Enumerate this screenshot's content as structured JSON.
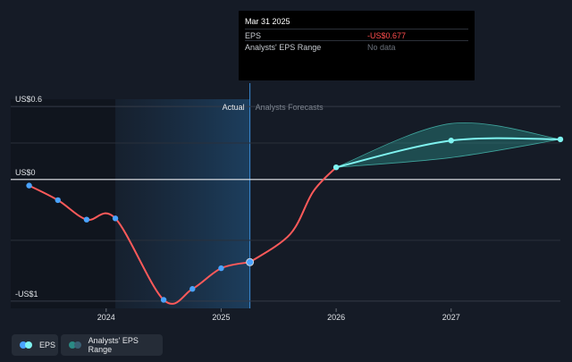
{
  "chart_data": {
    "type": "line",
    "y_axis": {
      "ticks": [
        {
          "label": "US$0.6",
          "value": 0.6
        },
        {
          "label": "US$0",
          "value": 0
        },
        {
          "label": "-US$1",
          "value": -1
        }
      ],
      "ylim": [
        -1.06,
        0.66
      ]
    },
    "x_axis": {
      "ticks": [
        {
          "label": "2024",
          "value": 2024.0
        },
        {
          "label": "2025",
          "value": 2025.0
        },
        {
          "label": "2026",
          "value": 2026.0
        },
        {
          "label": "2027",
          "value": 2027.0
        }
      ],
      "xlim": [
        2023.17,
        2027.95
      ]
    },
    "regions": {
      "actual_label": "Actual",
      "forecast_label": "Analysts Forecasts",
      "actual_end": 2025.25
    },
    "series": [
      {
        "name": "EPS",
        "color": "#ff5a5a",
        "points": [
          {
            "x": 2023.33,
            "y": -0.05
          },
          {
            "x": 2023.58,
            "y": -0.17
          },
          {
            "x": 2023.83,
            "y": -0.33
          },
          {
            "x": 2024.08,
            "y": -0.32
          },
          {
            "x": 2024.5,
            "y": -0.99
          },
          {
            "x": 2024.75,
            "y": -0.9
          },
          {
            "x": 2025.0,
            "y": -0.73
          },
          {
            "x": 2025.25,
            "y": -0.68
          }
        ]
      },
      {
        "name": "EPS",
        "color": "#7ff3f0",
        "points": [
          {
            "x": 2026.0,
            "y": 0.1
          },
          {
            "x": 2027.0,
            "y": 0.32
          },
          {
            "x": 2027.95,
            "y": 0.33
          }
        ]
      }
    ],
    "range": {
      "name": "Analysts' EPS Range",
      "color": "#2a8a84",
      "upper": [
        {
          "x": 2026.0,
          "y": 0.1
        },
        {
          "x": 2027.0,
          "y": 0.46
        },
        {
          "x": 2027.95,
          "y": 0.33
        }
      ],
      "lower": [
        {
          "x": 2026.0,
          "y": 0.1
        },
        {
          "x": 2027.0,
          "y": 0.18
        },
        {
          "x": 2027.95,
          "y": 0.33
        }
      ]
    }
  },
  "tooltip": {
    "date": "Mar 31 2025",
    "rows": [
      {
        "label": "EPS",
        "value": "-US$0.677",
        "color": "#ff4d4d"
      },
      {
        "label": "Analysts' EPS Range",
        "value": "No data",
        "color": "#6b717b"
      }
    ]
  },
  "legend": [
    {
      "label": "EPS",
      "colors": [
        "#4aa3ff",
        "#7ff3f0"
      ]
    },
    {
      "label": "Analysts' EPS Range",
      "colors": [
        "#2a8a84",
        "#3a5f73"
      ]
    }
  ]
}
